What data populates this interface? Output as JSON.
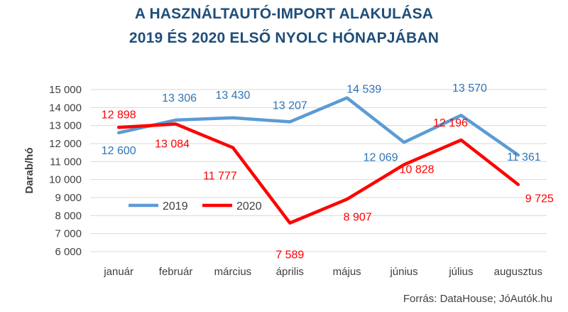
{
  "chart_data": {
    "type": "line",
    "title": [
      "A HASZNÁLTAUTÓ-IMPORT ALAKULÁSA",
      "2019 ÉS 2020 ELSŐ NYOLC HÓNAPJÁBAN"
    ],
    "ylabel": "Darab/hó",
    "xlabel": "",
    "categories": [
      "január",
      "február",
      "március",
      "április",
      "május",
      "június",
      "július",
      "augusztus"
    ],
    "ylim": [
      6000,
      15000
    ],
    "yticks": [
      6000,
      7000,
      8000,
      9000,
      10000,
      11000,
      12000,
      13000,
      14000,
      15000
    ],
    "ytick_labels": [
      "6 000",
      "7 000",
      "8 000",
      "9 000",
      "10 000",
      "11 000",
      "12 000",
      "13 000",
      "14 000",
      "15 000"
    ],
    "grid": true,
    "legend": "inside-left",
    "series": [
      {
        "name": "2019",
        "color": "#5b9bd5",
        "values": [
          12600,
          13306,
          13430,
          13207,
          14539,
          12069,
          13570,
          11361
        ],
        "labels": [
          "12 600",
          "13 306",
          "13 430",
          "13 207",
          "14 539",
          "12 069",
          "13 570",
          "11 361"
        ]
      },
      {
        "name": "2020",
        "color": "#ff0000",
        "values": [
          12898,
          13084,
          11777,
          7589,
          8907,
          10828,
          12196,
          9725
        ],
        "labels": [
          "12 898",
          "13 084",
          "11 777",
          "7 589",
          "8 907",
          "10 828",
          "12 196",
          "9 725"
        ]
      }
    ]
  },
  "source": "Forrás: DataHouse; JóAutók.hu"
}
